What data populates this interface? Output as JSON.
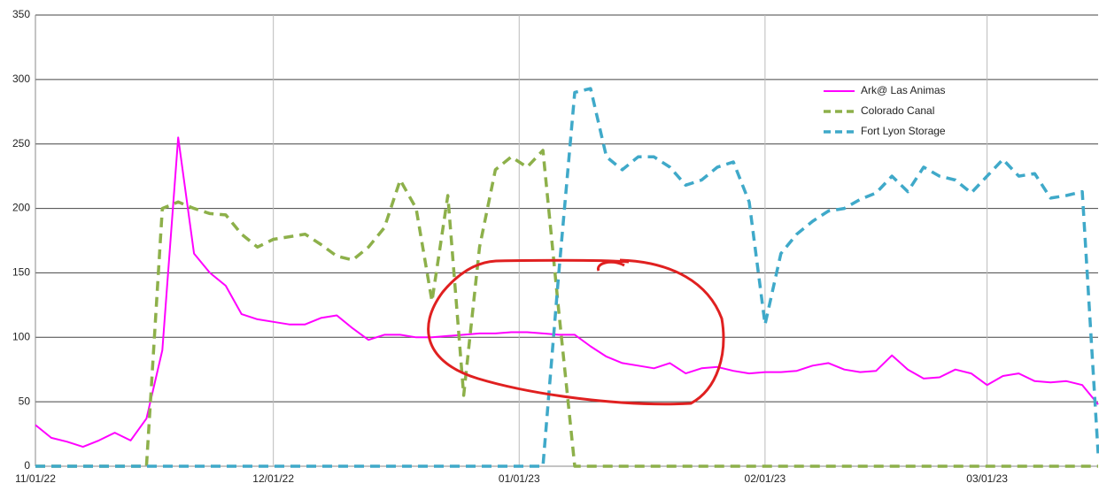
{
  "chart_data": {
    "type": "line",
    "x": [
      "11/01/22",
      "11/03/22",
      "11/05/22",
      "11/07/22",
      "11/09/22",
      "11/11/22",
      "11/13/22",
      "11/15/22",
      "11/17/22",
      "11/19/22",
      "11/21/22",
      "11/23/22",
      "11/25/22",
      "11/27/22",
      "11/29/22",
      "12/01/22",
      "12/03/22",
      "12/05/22",
      "12/07/22",
      "12/09/22",
      "12/11/22",
      "12/13/22",
      "12/15/22",
      "12/17/22",
      "12/19/22",
      "12/21/22",
      "12/23/22",
      "12/25/22",
      "12/27/22",
      "12/29/22",
      "12/31/22",
      "01/02/23",
      "01/04/23",
      "01/06/23",
      "01/08/23",
      "01/10/23",
      "01/12/23",
      "01/14/23",
      "01/16/23",
      "01/18/23",
      "01/20/23",
      "01/22/23",
      "01/24/23",
      "01/26/23",
      "01/28/23",
      "01/30/23",
      "02/01/23",
      "02/03/23",
      "02/05/23",
      "02/07/23",
      "02/09/23",
      "02/11/23",
      "02/13/23",
      "02/15/23",
      "02/17/23",
      "02/19/23",
      "02/21/23",
      "02/23/23",
      "02/25/23",
      "02/27/23",
      "03/01/23",
      "03/03/23",
      "03/05/23",
      "03/07/23",
      "03/09/23",
      "03/11/23",
      "03/13/23",
      "03/15/23"
    ],
    "series": [
      {
        "name": "Ark@ Las Animas",
        "color": "#ff00ff",
        "dashed": false,
        "values": [
          32,
          22,
          19,
          15,
          20,
          26,
          20,
          37,
          90,
          255,
          165,
          150,
          140,
          118,
          114,
          112,
          110,
          110,
          115,
          117,
          107,
          98,
          102,
          102,
          100,
          100,
          101,
          102,
          103,
          103,
          104,
          104,
          103,
          102,
          102,
          93,
          85,
          80,
          78,
          76,
          80,
          72,
          76,
          77,
          74,
          72,
          73,
          73,
          74,
          78,
          80,
          75,
          73,
          74,
          86,
          75,
          68,
          69,
          75,
          72,
          63,
          70,
          72,
          66,
          65,
          66,
          63,
          48
        ]
      },
      {
        "name": "Colorado Canal",
        "color": "#8db04a",
        "dashed": true,
        "values": [
          0,
          0,
          0,
          0,
          0,
          0,
          0,
          0,
          200,
          205,
          200,
          196,
          195,
          180,
          170,
          176,
          178,
          180,
          172,
          163,
          160,
          170,
          185,
          222,
          200,
          128,
          210,
          55,
          170,
          230,
          240,
          232,
          245,
          120,
          0,
          0,
          0,
          0,
          0,
          0,
          0,
          0,
          0,
          0,
          0,
          0,
          0,
          0,
          0,
          0,
          0,
          0,
          0,
          0,
          0,
          0,
          0,
          0,
          0,
          0,
          0,
          0,
          0,
          0,
          0,
          0,
          0,
          0
        ]
      },
      {
        "name": "Fort Lyon Storage",
        "color": "#3fa9c9",
        "dashed": true,
        "values": [
          0,
          0,
          0,
          0,
          0,
          0,
          0,
          0,
          0,
          0,
          0,
          0,
          0,
          0,
          0,
          0,
          0,
          0,
          0,
          0,
          0,
          0,
          0,
          0,
          0,
          0,
          0,
          0,
          0,
          0,
          0,
          0,
          0,
          150,
          290,
          293,
          240,
          230,
          240,
          240,
          232,
          218,
          222,
          232,
          236,
          205,
          110,
          165,
          180,
          190,
          198,
          200,
          207,
          212,
          225,
          213,
          232,
          225,
          222,
          212,
          225,
          238,
          225,
          227,
          208,
          210,
          213,
          10
        ]
      }
    ],
    "xlim": [
      "11/01/22",
      "03/15/23"
    ],
    "xticks": [
      "11/01/22",
      "12/01/22",
      "01/01/23",
      "02/01/23",
      "03/01/23"
    ],
    "ylim": [
      0,
      350
    ],
    "yticks": [
      0,
      50,
      100,
      150,
      200,
      250,
      300,
      350
    ],
    "grid": true
  }
}
